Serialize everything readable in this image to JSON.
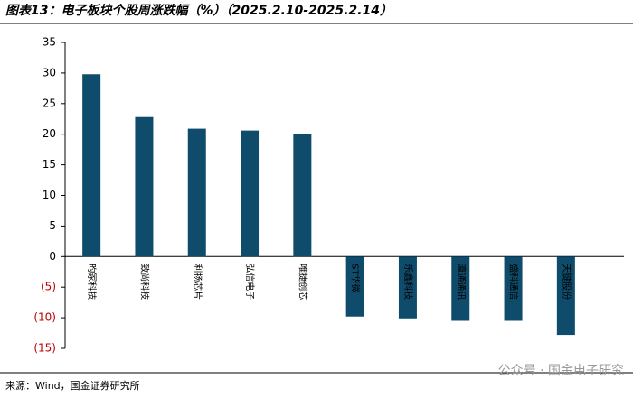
{
  "chart_data": {
    "type": "bar",
    "title": "图表13：电子板块个股周涨跌幅（%）（2025.2.10-2025.2.14）",
    "source": "来源：Wind，国金证券研究所",
    "watermark": "公众号 · 国金电子研究",
    "categories": [
      "昀冢科技",
      "致尚科技",
      "利扬芯片",
      "弘信电子",
      "唯捷创芯",
      "ST华微",
      "乐鑫科技",
      "瀛通通讯",
      "盛科通信",
      "天键股份"
    ],
    "values": [
      29.8,
      22.8,
      20.9,
      20.6,
      20.1,
      -9.8,
      -10.1,
      -10.5,
      -10.5,
      -12.8
    ],
    "color": "#0f4c6b",
    "negative_label_color": "#c00000",
    "ylim": [
      -15,
      35
    ],
    "yticks": [
      {
        "value": -15,
        "label": "(15)"
      },
      {
        "value": -10,
        "label": "(10)"
      },
      {
        "value": -5,
        "label": "(5)"
      },
      0,
      5,
      10,
      15,
      20,
      25,
      30,
      35
    ]
  }
}
